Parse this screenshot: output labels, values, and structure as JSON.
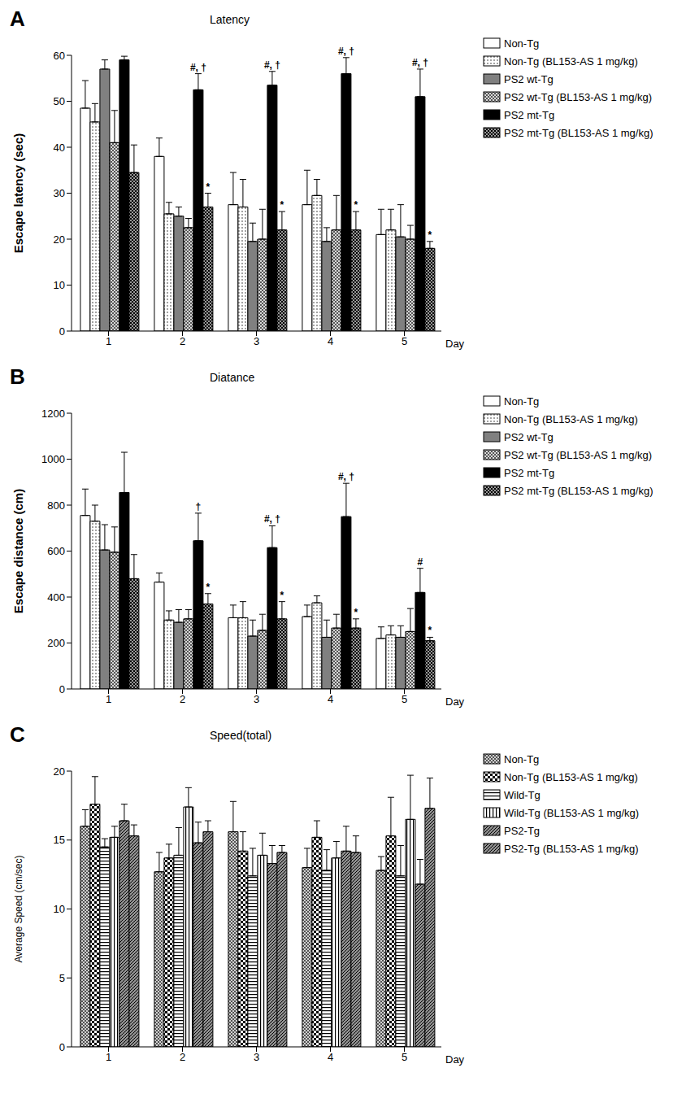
{
  "chart_data": [
    {
      "type": "bar",
      "panel": "A",
      "title": "Latency",
      "xlabel": "Day",
      "ylabel": "Escape latency (sec)",
      "categories": [
        "1",
        "2",
        "3",
        "4",
        "5"
      ],
      "ylim": [
        0,
        60
      ],
      "yticks": [
        0,
        10,
        20,
        30,
        40,
        50,
        60
      ],
      "grid": false,
      "legend": "right",
      "series": [
        {
          "name": "Non-Tg",
          "color": "#ffffff",
          "values": [
            48.5,
            38,
            27.5,
            27.5,
            21
          ],
          "errors": [
            6,
            4,
            7,
            7.5,
            5.5
          ]
        },
        {
          "name": "Non-Tg (BL153-AS 1 mg/kg)",
          "color": "#ffffff",
          "values": [
            45.5,
            25.5,
            27,
            29.5,
            22
          ],
          "errors": [
            4,
            2.5,
            6,
            3.5,
            4.5
          ]
        },
        {
          "name": "PS2 wt-Tg",
          "color": "#808080",
          "values": [
            57,
            25,
            19.5,
            19.5,
            20.5
          ],
          "errors": [
            2,
            2,
            4,
            3,
            7
          ]
        },
        {
          "name": "PS2 wt-Tg (BL153-AS 1 mg/kg)",
          "color": "#d8d8d8",
          "values": [
            41,
            22.5,
            20,
            22,
            20
          ],
          "errors": [
            7,
            2,
            6.5,
            7.5,
            3
          ]
        },
        {
          "name": "PS2 mt-Tg",
          "color": "#000000",
          "values": [
            59,
            52.5,
            53.5,
            56,
            51
          ],
          "errors": [
            0.8,
            3.5,
            3,
            3.5,
            6
          ],
          "annotations": [
            null,
            "#, †",
            "#, †",
            "#, †",
            "#, †"
          ]
        },
        {
          "name": "PS2 mt-Tg (BL153-AS 1 mg/kg)",
          "color": "#000000",
          "values": [
            34.5,
            27,
            22,
            22,
            18
          ],
          "errors": [
            6,
            3,
            4,
            4,
            1.5
          ],
          "annotations": [
            null,
            "*",
            "*",
            "*",
            "*"
          ]
        }
      ]
    },
    {
      "type": "bar",
      "panel": "B",
      "title": "Diatance",
      "xlabel": "Day",
      "ylabel": "Escape distance (cm)",
      "categories": [
        "1",
        "2",
        "3",
        "4",
        "5"
      ],
      "ylim": [
        0,
        1200
      ],
      "yticks": [
        0,
        200,
        400,
        600,
        800,
        1000,
        1200
      ],
      "grid": false,
      "legend": "right",
      "series": [
        {
          "name": "Non-Tg",
          "color": "#ffffff",
          "values": [
            755,
            465,
            310,
            315,
            220
          ],
          "errors": [
            115,
            40,
            55,
            50,
            50
          ]
        },
        {
          "name": "Non-Tg (BL153-AS 1 mg/kg)",
          "color": "#ffffff",
          "values": [
            730,
            300,
            310,
            375,
            235
          ],
          "errors": [
            70,
            40,
            70,
            30,
            40
          ]
        },
        {
          "name": "PS2 wt-Tg",
          "color": "#808080",
          "values": [
            605,
            290,
            230,
            225,
            225
          ],
          "errors": [
            110,
            55,
            70,
            75,
            50
          ]
        },
        {
          "name": "PS2 wt-Tg (BL153-AS 1 mg/kg)",
          "color": "#d8d8d8",
          "values": [
            595,
            305,
            255,
            265,
            250
          ],
          "errors": [
            110,
            40,
            70,
            60,
            100
          ]
        },
        {
          "name": "PS2 mt-Tg",
          "color": "#000000",
          "values": [
            855,
            645,
            615,
            750,
            420
          ],
          "errors": [
            175,
            120,
            95,
            145,
            105
          ],
          "annotations": [
            null,
            "†",
            "#, †",
            "#, †",
            "#"
          ]
        },
        {
          "name": "PS2 mt-Tg (BL153-AS 1 mg/kg)",
          "color": "#000000",
          "values": [
            480,
            370,
            305,
            265,
            210
          ],
          "errors": [
            105,
            45,
            75,
            40,
            15
          ],
          "annotations": [
            null,
            "*",
            "*",
            "*",
            "*"
          ]
        }
      ]
    },
    {
      "type": "bar",
      "panel": "C",
      "title": "Speed(total)",
      "xlabel": "Day",
      "ylabel": "Average Speed (cm/sec)",
      "categories": [
        "1",
        "2",
        "3",
        "4",
        "5"
      ],
      "ylim": [
        0,
        20
      ],
      "yticks": [
        0,
        5,
        10,
        15,
        20
      ],
      "grid": false,
      "legend": "right",
      "series": [
        {
          "name": "Non-Tg",
          "color": "#d0d0d0",
          "values": [
            16,
            12.7,
            15.6,
            13,
            12.8
          ],
          "errors": [
            1.2,
            1.4,
            2.2,
            1.4,
            1
          ]
        },
        {
          "name": "Non-Tg (BL153-AS 1 mg/kg)",
          "color": "#ffffff",
          "values": [
            17.6,
            13.7,
            14.2,
            15.2,
            15.3
          ],
          "errors": [
            2,
            1,
            1.4,
            1.2,
            2.8
          ]
        },
        {
          "name": "Wild-Tg",
          "color": "#ffffff",
          "values": [
            14.5,
            13.9,
            12.4,
            12.8,
            12.4
          ],
          "errors": [
            0.6,
            2,
            2,
            1.5,
            2.2
          ]
        },
        {
          "name": "Wild-Tg (BL153-AS 1 mg/kg)",
          "color": "#ffffff",
          "values": [
            15.2,
            17.4,
            13.9,
            13.7,
            16.5
          ],
          "errors": [
            0.8,
            1.4,
            1.6,
            1.2,
            3.2
          ]
        },
        {
          "name": "PS2-Tg",
          "color": "#909090",
          "values": [
            16.4,
            14.8,
            13.3,
            14.2,
            11.8
          ],
          "errors": [
            1.2,
            1.5,
            1.3,
            1.8,
            1.8
          ]
        },
        {
          "name": "PS2-Tg (BL153-AS 1 mg/kg)",
          "color": "#909090",
          "values": [
            15.3,
            15.6,
            14.1,
            14.1,
            17.3
          ],
          "errors": [
            0.8,
            0.8,
            0.5,
            1.2,
            2.2
          ]
        }
      ]
    }
  ]
}
